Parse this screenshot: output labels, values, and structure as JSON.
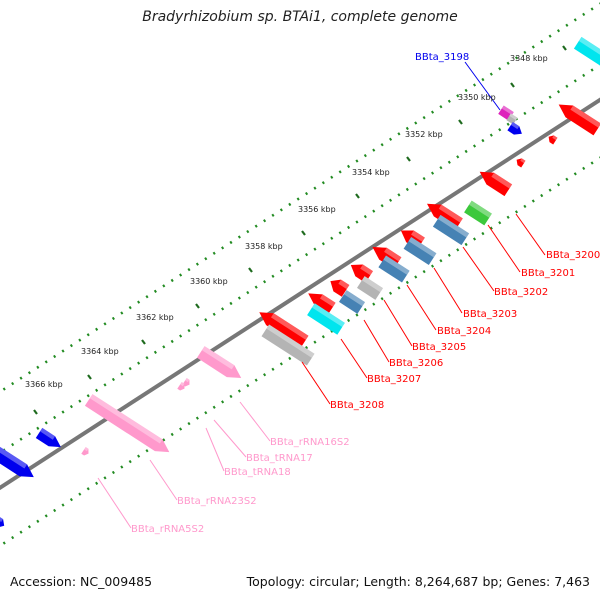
{
  "header": {
    "title": "Bradyrhizobium sp. BTAi1, complete genome"
  },
  "footer": {
    "accession": "Accession: NC_009485",
    "summary": "Topology: circular; Length: 8,264,687 bp; Genes: 7,463"
  },
  "colors": {
    "protein_gene": "#ff0000",
    "cds_blue": "#4682b4",
    "cds_cyan": "#00e5ee",
    "cds_gray": "#b4b4b4",
    "cds_green": "#3cc83c",
    "rrna": "#ff99cc",
    "trna": "#ff99cc",
    "forward_other": "#0000ee",
    "magenta": "#dd22bb",
    "backbone": "#777777",
    "tick_dots": "#228b22"
  },
  "scale_labels": [
    "3348 kbp",
    "3350 kbp",
    "3352 kbp",
    "3354 kbp",
    "3356 kbp",
    "3358 kbp",
    "3360 kbp",
    "3362 kbp",
    "3364 kbp",
    "3366 kbp"
  ],
  "gene_labels": {
    "BBta_3198": "BBta_3198",
    "BBta_3200": "BBta_3200",
    "BBta_3201": "BBta_3201",
    "BBta_3202": "BBta_3202",
    "BBta_3203": "BBta_3203",
    "BBta_3204": "BBta_3204",
    "BBta_3205": "BBta_3205",
    "BBta_3206": "BBta_3206",
    "BBta_3207": "BBta_3207",
    "BBta_3208": "BBta_3208",
    "BBta_rRNA16S2": "BBta_rRNA16S2",
    "BBta_tRNA17": "BBta_tRNA17",
    "BBta_tRNA18": "BBta_tRNA18",
    "BBta_rRNA23S2": "BBta_rRNA23S2",
    "BBta_rRNA5S2": "BBta_rRNA5S2"
  }
}
